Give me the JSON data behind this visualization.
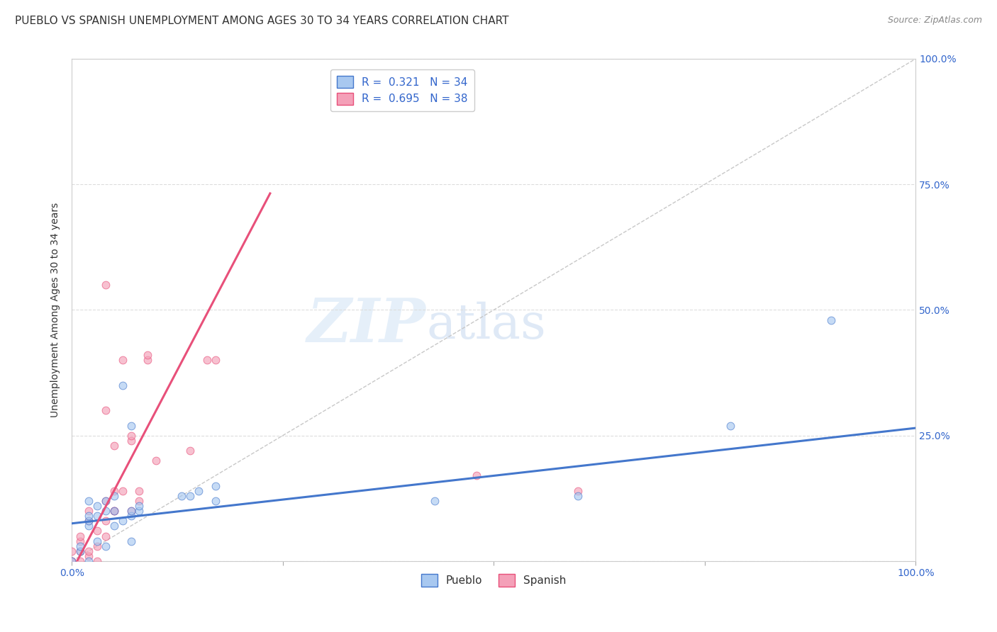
{
  "title": "PUEBLO VS SPANISH UNEMPLOYMENT AMONG AGES 30 TO 34 YEARS CORRELATION CHART",
  "source": "Source: ZipAtlas.com",
  "ylabel": "Unemployment Among Ages 30 to 34 years",
  "xlim": [
    0.0,
    1.0
  ],
  "ylim": [
    0.0,
    1.0
  ],
  "xticks": [
    0.0,
    0.25,
    0.5,
    0.75,
    1.0
  ],
  "xticklabels": [
    "0.0%",
    "",
    "",
    "",
    "100.0%"
  ],
  "yticks": [
    0.0,
    0.25,
    0.5,
    0.75,
    1.0
  ],
  "right_yticklabels": [
    "",
    "25.0%",
    "50.0%",
    "75.0%",
    "100.0%"
  ],
  "pueblo_color": "#a8c8f0",
  "spanish_color": "#f4a0b8",
  "pueblo_line_color": "#4477cc",
  "spanish_line_color": "#e8507a",
  "diagonal_color": "#c8c8c8",
  "watermark_zip": "ZIP",
  "watermark_atlas": "atlas",
  "pueblo_slope": 0.19,
  "pueblo_intercept": 0.075,
  "spanish_slope": 3.2,
  "spanish_intercept": -0.02,
  "spanish_line_x_end": 0.235,
  "pueblo_x": [
    0.0,
    0.01,
    0.01,
    0.02,
    0.02,
    0.02,
    0.02,
    0.02,
    0.03,
    0.03,
    0.03,
    0.04,
    0.04,
    0.04,
    0.05,
    0.05,
    0.05,
    0.06,
    0.06,
    0.07,
    0.07,
    0.07,
    0.07,
    0.08,
    0.08,
    0.13,
    0.14,
    0.15,
    0.17,
    0.17,
    0.43,
    0.6,
    0.78,
    0.9
  ],
  "pueblo_y": [
    0.0,
    0.02,
    0.03,
    0.0,
    0.07,
    0.08,
    0.09,
    0.12,
    0.04,
    0.09,
    0.11,
    0.03,
    0.1,
    0.12,
    0.07,
    0.1,
    0.13,
    0.08,
    0.35,
    0.04,
    0.09,
    0.1,
    0.27,
    0.1,
    0.11,
    0.13,
    0.13,
    0.14,
    0.12,
    0.15,
    0.12,
    0.13,
    0.27,
    0.48
  ],
  "spanish_x": [
    0.0,
    0.0,
    0.0,
    0.01,
    0.01,
    0.01,
    0.01,
    0.02,
    0.02,
    0.02,
    0.02,
    0.03,
    0.03,
    0.03,
    0.04,
    0.04,
    0.04,
    0.04,
    0.04,
    0.05,
    0.05,
    0.05,
    0.05,
    0.06,
    0.06,
    0.07,
    0.07,
    0.07,
    0.08,
    0.08,
    0.09,
    0.09,
    0.1,
    0.14,
    0.16,
    0.17,
    0.48,
    0.6
  ],
  "spanish_y": [
    0.0,
    0.0,
    0.02,
    0.0,
    0.02,
    0.04,
    0.05,
    0.01,
    0.02,
    0.08,
    0.1,
    0.0,
    0.03,
    0.06,
    0.05,
    0.08,
    0.12,
    0.3,
    0.55,
    0.1,
    0.1,
    0.14,
    0.23,
    0.14,
    0.4,
    0.1,
    0.24,
    0.25,
    0.12,
    0.14,
    0.4,
    0.41,
    0.2,
    0.22,
    0.4,
    0.4,
    0.17,
    0.14
  ],
  "background_color": "#ffffff",
  "grid_color": "#dddddd",
  "title_fontsize": 11,
  "axis_label_fontsize": 10,
  "tick_fontsize": 10,
  "legend_fontsize": 11,
  "marker_size": 60,
  "marker_alpha": 0.65
}
